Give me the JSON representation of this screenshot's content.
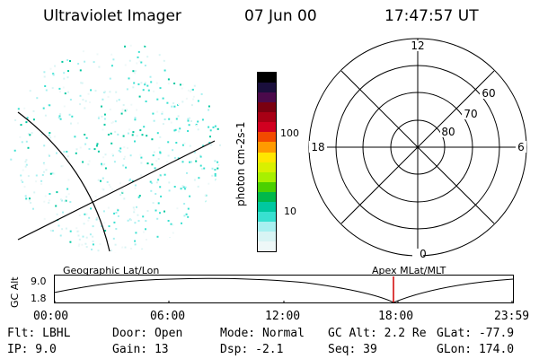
{
  "header": {
    "title": "Ultraviolet Imager",
    "date": "07 Jun 00",
    "time": "17:47:57 UT"
  },
  "colorbar": {
    "label": "photon cm-2s-1",
    "ticks": [
      "100",
      "10"
    ],
    "colors": [
      "#000000",
      "#1a0f3c",
      "#4b0a4b",
      "#7a0010",
      "#a80015",
      "#d10020",
      "#f24a00",
      "#ff9a00",
      "#ffe600",
      "#d9f000",
      "#a8f000",
      "#4ad000",
      "#00b84a",
      "#00c8a0",
      "#38e0d0",
      "#a8f0f0",
      "#d8f4f4",
      "#eef8f8"
    ]
  },
  "polar_plot": {
    "hour_labels": [
      "12",
      "18",
      "6",
      "0"
    ],
    "latitude_labels": [
      "60",
      "70",
      "80"
    ]
  },
  "timeline": {
    "y_axis_label": "GC Alt",
    "y_values": [
      "9.0",
      "1.8"
    ],
    "left_label": "Geographic Lat/Lon",
    "right_label": "Apex MLat/MLT",
    "x_ticks": [
      "00:00",
      "06:00",
      "12:00",
      "18:00",
      "23:59"
    ]
  },
  "status": {
    "row1": [
      "Flt: LBHL",
      "Door: Open",
      "Mode: Normal",
      "GC Alt: 2.2 Re",
      "GLat: -77.9"
    ],
    "row2": [
      "IP:  9.0",
      "Gain: 13",
      "Dsp:   -2.1",
      "Seq: 39",
      "GLon: 174.0"
    ]
  }
}
